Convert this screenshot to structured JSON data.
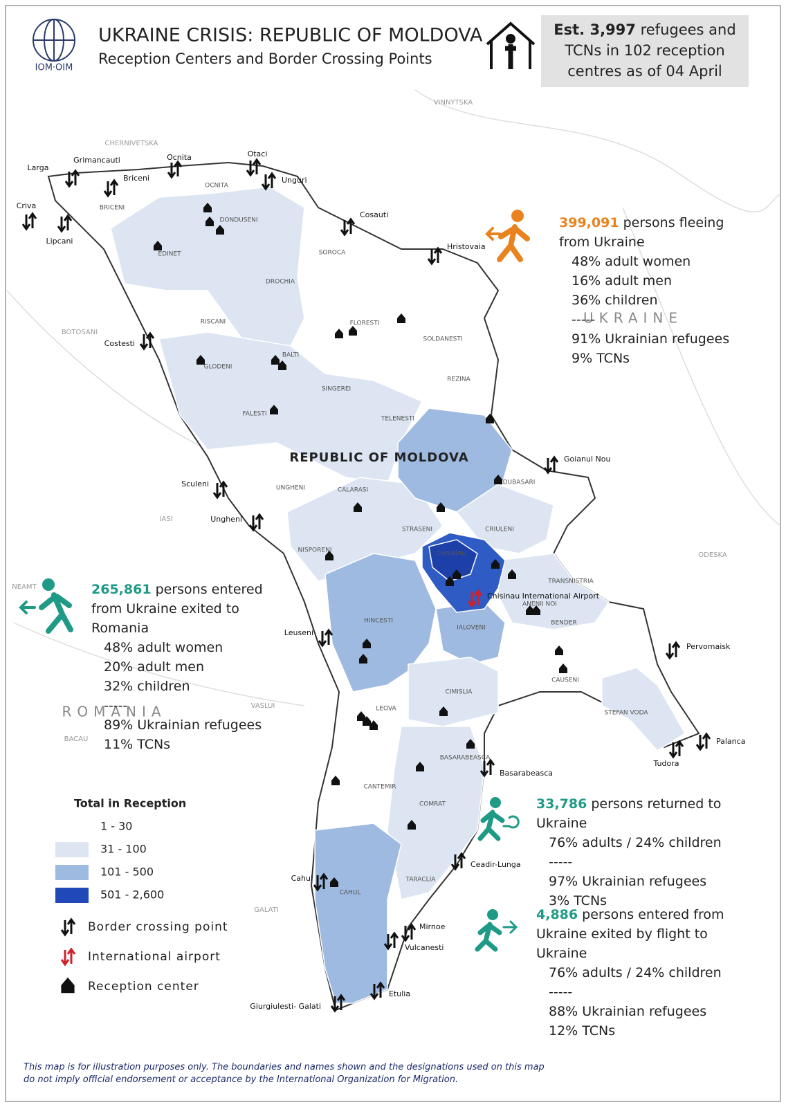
{
  "header": {
    "logo_text": "IOM·OIM",
    "title": "UKRAINE CRISIS: REPUBLIC OF MOLDOVA",
    "subtitle": "Reception Centers and Border Crossing Points"
  },
  "estimate": {
    "number": "Est. 3,997",
    "text": "refugees and TCNs in 102 reception centres as of 04 April"
  },
  "panels": [
    {
      "number": "399,091",
      "text": "persons fleeing from Ukraine",
      "lines": [
        "48% adult women",
        "16% adult men",
        "36% children",
        "-----",
        "91% Ukrainian refugees",
        "9% TCNs"
      ]
    },
    {
      "number": "265,861",
      "text": "persons entered from Ukraine exited to Romania",
      "lines": [
        "48% adult women",
        "20% adult men",
        "32% children",
        "-----",
        "89% Ukrainian refugees",
        "11% TCNs"
      ]
    },
    {
      "number": "33,786",
      "text": "persons returned to Ukraine",
      "lines": [
        "76% adults / 24% children",
        "-----",
        "97% Ukrainian refugees",
        "3% TCNs"
      ]
    },
    {
      "number": "4,886",
      "text": "persons entered from Ukraine exited by flight to Ukraine",
      "lines": [
        "76% adults / 24% children",
        "-----",
        "88% Ukrainian refugees",
        "12% TCNs"
      ]
    }
  ],
  "map": {
    "countries": [
      "UKRAINE",
      "ROMANIA",
      "REPUBLIC OF MOLDOVA"
    ],
    "neighbor_regions": [
      "VINNYTSKA",
      "CHERNIVETSKA",
      "BOTOSANI",
      "IASI",
      "ODESKA",
      "NEAMT",
      "VASLUI",
      "BACAU",
      "GALATI"
    ],
    "districts": [
      "OCNITA",
      "BRICENI",
      "EDINET",
      "DONDUSENI",
      "SOROCA",
      "DROCHIA",
      "RISCANI",
      "FLORESTI",
      "SOLDANESTI",
      "GLODENI",
      "BALTI",
      "SINGEREI",
      "FALESTI",
      "REZINA",
      "TELENESTI",
      "UNGHENI",
      "CALARASI",
      "DUBASARI",
      "STRASENI",
      "CRIULENI",
      "NISPORENI",
      "CHISINAU",
      "TRANSNISTRIA",
      "ANENII NOI",
      "HINCESTI",
      "IALOVENI",
      "BENDER",
      "CAUSENI",
      "CIMISLIA",
      "STEFAN VODA",
      "LEOVA",
      "BASARABEASCA",
      "CANTEMIR",
      "COMRAT",
      "TARACLIA",
      "CAHUL"
    ],
    "border_points": [
      "Larga",
      "Grimancauti",
      "Briceni",
      "Ocnita",
      "Otaci",
      "Unguri",
      "Criva",
      "Lipcani",
      "Cosauti",
      "Hristovaia",
      "Costesti",
      "Goianul Nou",
      "Sculeni",
      "Ungheni",
      "Leuseni",
      "Pervomaisk",
      "Palanca",
      "Tudora",
      "Basarabeasca",
      "Ceadir-Lunga",
      "Cahul",
      "Mirnoe",
      "Vulcanesti",
      "Etulia",
      "Giurgiulesti- Galati"
    ],
    "airport": "Chisinau International Airport"
  },
  "legend": {
    "title": "Total in Reception",
    "classes": [
      "1 - 30",
      "31 - 100",
      "101 - 500",
      "501 - 2,600"
    ],
    "symbols": [
      "Border crossing point",
      "International airport",
      "Reception center"
    ]
  },
  "disclaimer": "This map is for illustration purposes only. The boundaries and names shown and the designations used on this map do not imply official endorsement or acceptance by the International Organization for Migration."
}
